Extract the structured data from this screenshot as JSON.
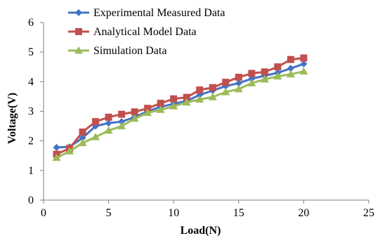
{
  "chart_data": {
    "type": "line",
    "xlabel": "Load(N)",
    "ylabel": "Voltage(V)",
    "xlim": [
      0,
      25
    ],
    "ylim": [
      0,
      6
    ],
    "x_ticks": [
      0,
      5,
      10,
      15,
      20,
      25
    ],
    "y_ticks": [
      0,
      1,
      2,
      3,
      4,
      5,
      6
    ],
    "grid": false,
    "legend_position": "top-left",
    "x": [
      1,
      2,
      3,
      4,
      5,
      6,
      7,
      8,
      9,
      10,
      11,
      12,
      13,
      14,
      15,
      16,
      17,
      18,
      19,
      20
    ],
    "series": [
      {
        "name": "Experimental Measured Data",
        "color": "#4472C4",
        "marker": "diamond",
        "values": [
          1.78,
          1.8,
          2.1,
          2.5,
          2.6,
          2.65,
          2.8,
          3.0,
          3.15,
          3.25,
          3.35,
          3.55,
          3.7,
          3.85,
          3.95,
          4.1,
          4.2,
          4.3,
          4.45,
          4.6
        ]
      },
      {
        "name": "Analytical Model Data",
        "color": "#C0504D",
        "marker": "square",
        "values": [
          1.55,
          1.75,
          2.3,
          2.65,
          2.8,
          2.9,
          2.98,
          3.1,
          3.27,
          3.42,
          3.47,
          3.72,
          3.8,
          3.98,
          4.15,
          4.28,
          4.33,
          4.5,
          4.75,
          4.8
        ]
      },
      {
        "name": "Simulation Data",
        "color": "#9BBB59",
        "marker": "triangle",
        "values": [
          1.43,
          1.65,
          1.93,
          2.13,
          2.35,
          2.5,
          2.75,
          2.95,
          3.05,
          3.17,
          3.3,
          3.4,
          3.48,
          3.65,
          3.75,
          3.95,
          4.08,
          4.18,
          4.25,
          4.35
        ]
      }
    ]
  }
}
